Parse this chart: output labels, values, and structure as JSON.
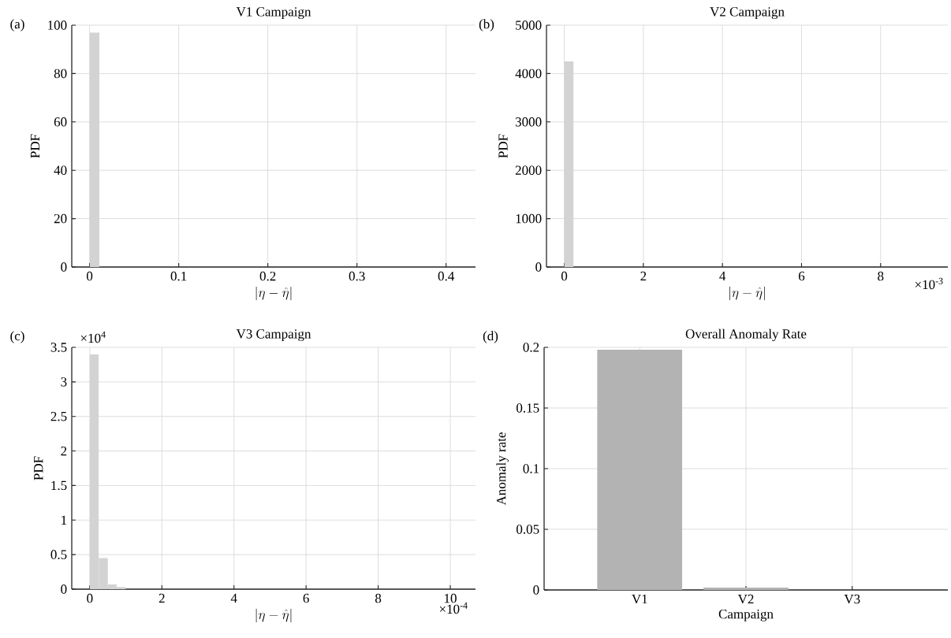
{
  "chart_data": [
    {
      "type": "histogram",
      "title": "V1 Campaign",
      "xlabel": "|\\eta - \\hat{\\eta}|",
      "ylabel": "PDF",
      "annotations": [
        "(a)"
      ],
      "bins": [
        0,
        0.011
      ],
      "values": [
        97
      ],
      "color": "#d3d3d3",
      "xlim": [
        -0.02,
        0.433
      ],
      "xticks": [
        0,
        0.1,
        0.2,
        0.3,
        0.4
      ],
      "ylim": [
        0,
        100
      ],
      "yticks": [
        0,
        20,
        40,
        60,
        80,
        100
      ],
      "grid": true
    },
    {
      "type": "histogram",
      "title": "V2 Campaign",
      "xlabel": "|\\eta - \\hat{\\eta}|",
      "ylabel": "PDF",
      "annotations": [
        "(b)",
        "×10$^{-3}$"
      ],
      "bins": [
        0,
        0.235
      ],
      "values": [
        4250
      ],
      "color": "#d3d3d3",
      "xlim": [
        -0.45,
        9.7
      ],
      "xticks": [
        0,
        2,
        4,
        6,
        8
      ],
      "ylim": [
        0,
        5000
      ],
      "yticks": [
        0,
        1000,
        2000,
        3000,
        4000,
        5000
      ],
      "grid": true
    },
    {
      "type": "histogram",
      "title": "V3 Campaign",
      "xlabel": "|\\eta - \\hat{\\eta}|",
      "ylabel": "PDF",
      "annotations": [
        "(c)",
        "×10$^{4}$",
        "×10$^{-4}$"
      ],
      "bins": [
        0,
        0.25,
        0.5,
        0.75,
        1
      ],
      "values": [
        3.4,
        0.45,
        0.07,
        0.03
      ],
      "color": "#d3d3d3",
      "xlim": [
        -0.5,
        10.7
      ],
      "xticks": [
        0,
        2,
        4,
        6,
        8,
        10
      ],
      "ylim": [
        0,
        3.5
      ],
      "yticks": [
        0,
        0.5,
        1,
        1.5,
        2,
        2.5,
        3,
        3.5
      ],
      "grid": true
    },
    {
      "type": "bar",
      "title": "Overall Anomaly Rate",
      "xlabel": "Campaign",
      "ylabel": "Anomaly rate",
      "annotations": [
        "(d)"
      ],
      "categories": [
        "V1",
        "V2",
        "V3"
      ],
      "values": [
        0.198,
        0.002,
        0
      ],
      "color": "#b3b3b3",
      "ylim": [
        0,
        0.2
      ],
      "yticks": [
        0,
        0.05,
        0.1,
        0.15,
        0.2
      ],
      "grid": true
    }
  ]
}
